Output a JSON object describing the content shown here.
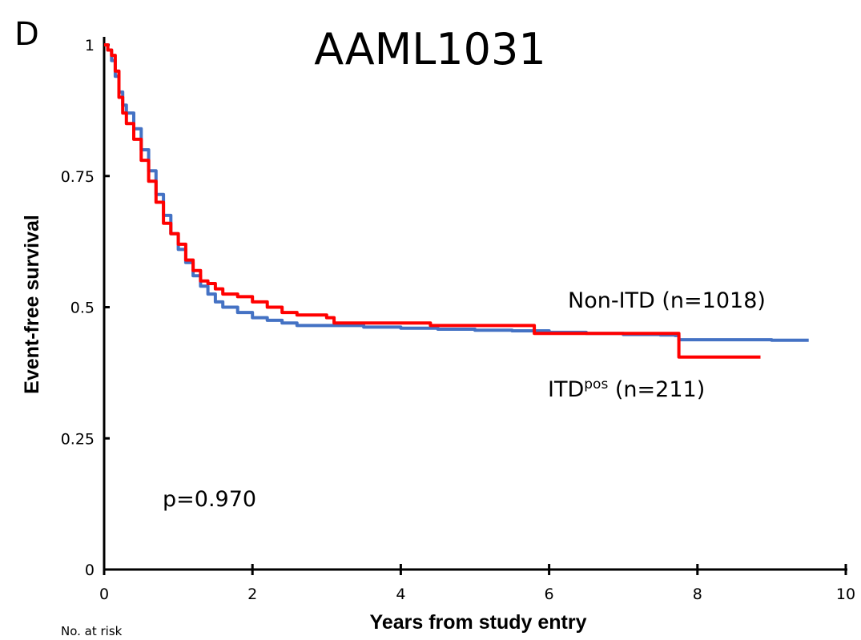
{
  "chart_data": {
    "type": "line",
    "panel_label": "D",
    "title": "AAML1031",
    "xlabel": "Years from study entry",
    "ylabel": "Event-free survival",
    "xlim": [
      0,
      10
    ],
    "ylim": [
      0,
      1
    ],
    "x_ticks": [
      "0",
      "2",
      "4",
      "6",
      "8",
      "10"
    ],
    "y_ticks": [
      "0",
      "0.25",
      "0.5",
      "0.75",
      "1"
    ],
    "grid": false,
    "footer_label": "No. at risk",
    "p_value_label": "p=0.970",
    "series": [
      {
        "name": "Non-ITD (n=1018)",
        "color": "#4472C4",
        "x": [
          0,
          0.05,
          0.1,
          0.15,
          0.2,
          0.25,
          0.3,
          0.4,
          0.5,
          0.6,
          0.7,
          0.8,
          0.9,
          1.0,
          1.1,
          1.2,
          1.3,
          1.4,
          1.5,
          1.6,
          1.8,
          2.0,
          2.2,
          2.4,
          2.6,
          3.0,
          3.5,
          4.0,
          4.5,
          5.0,
          5.5,
          6.0,
          6.5,
          7.0,
          7.5,
          7.7,
          7.75,
          8.0,
          9.0,
          9.5
        ],
        "y": [
          1.0,
          0.99,
          0.97,
          0.94,
          0.91,
          0.885,
          0.87,
          0.84,
          0.8,
          0.76,
          0.715,
          0.675,
          0.64,
          0.61,
          0.585,
          0.56,
          0.54,
          0.525,
          0.51,
          0.5,
          0.49,
          0.48,
          0.475,
          0.47,
          0.465,
          0.465,
          0.462,
          0.46,
          0.458,
          0.456,
          0.455,
          0.452,
          0.45,
          0.448,
          0.447,
          0.446,
          0.438,
          0.438,
          0.437,
          0.437
        ]
      },
      {
        "name": "ITDpos (n=211)",
        "name_main": "ITD",
        "name_sup": "pos",
        "name_suffix": " (n=211)",
        "color": "#FF0000",
        "x": [
          0,
          0.05,
          0.1,
          0.15,
          0.2,
          0.25,
          0.3,
          0.4,
          0.5,
          0.6,
          0.7,
          0.8,
          0.9,
          1.0,
          1.1,
          1.2,
          1.3,
          1.4,
          1.5,
          1.6,
          1.8,
          2.0,
          2.2,
          2.4,
          2.6,
          2.8,
          3.0,
          3.1,
          4.4,
          5.8,
          7.75,
          8.85
        ],
        "y": [
          1.0,
          0.99,
          0.98,
          0.95,
          0.9,
          0.87,
          0.85,
          0.82,
          0.78,
          0.74,
          0.7,
          0.66,
          0.64,
          0.62,
          0.59,
          0.57,
          0.55,
          0.545,
          0.535,
          0.525,
          0.52,
          0.51,
          0.5,
          0.49,
          0.485,
          0.485,
          0.48,
          0.47,
          0.465,
          0.45,
          0.405,
          0.405
        ]
      }
    ]
  }
}
